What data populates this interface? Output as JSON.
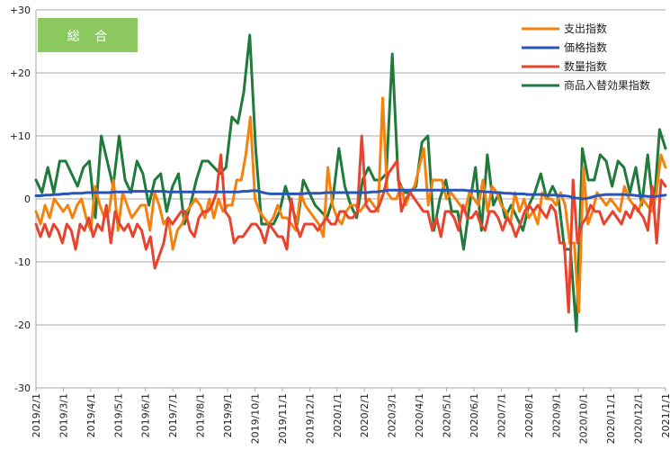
{
  "chart_data": {
    "type": "line",
    "title": "総 合",
    "xlabel": "",
    "ylabel": "",
    "ylim": [
      -30,
      30
    ],
    "y_ticks": [
      "+30",
      "+20",
      "+10",
      "0",
      "-10",
      "-20",
      "-30"
    ],
    "y_tick_values": [
      30,
      20,
      10,
      0,
      -10,
      -20,
      -30
    ],
    "x_tick_labels": [
      "2019/2/1",
      "2019/3/1",
      "2019/4/1",
      "2019/5/1",
      "2019/6/1",
      "2019/7/1",
      "2019/8/1",
      "2019/9/1",
      "2019/10/1",
      "2019/11/1",
      "2019/12/1",
      "2020/1/1",
      "2020/2/1",
      "2020/3/1",
      "2020/4/1",
      "2020/5/1",
      "2020/6/1",
      "2020/7/1",
      "2020/8/1",
      "2020/9/1",
      "2020/10/1",
      "2020/11/1",
      "2020/12/1",
      "2021/1/1"
    ],
    "grid": "horizontal",
    "legend_position": "top-right",
    "colors": {
      "spend": "#f5820f",
      "price": "#2a55b8",
      "quantity": "#e8432e",
      "substitution": "#1f7a3c",
      "badge": "#8cc860"
    },
    "series": [
      {
        "name": "支出指数",
        "key": "spend",
        "values": [
          -2,
          -4,
          -1,
          -3,
          0,
          -1,
          -2,
          -1,
          -3,
          -1,
          0,
          -3,
          -5,
          2,
          -1,
          -3,
          -2,
          3,
          -5,
          1,
          -1,
          -3,
          -2,
          -1,
          -1,
          -5,
          1,
          -1,
          -4,
          -3,
          -8,
          -5,
          -4,
          -2,
          -1,
          0,
          -1,
          -3,
          0,
          -3,
          0,
          -2,
          -1,
          -1,
          3,
          3,
          7,
          13,
          0,
          -2,
          -3,
          -4,
          -3,
          -1,
          -3,
          -3,
          -4,
          -5,
          1,
          -1,
          -2,
          -3,
          -4,
          -6,
          5,
          -1,
          -3,
          -4,
          -2,
          -1,
          -1,
          -2,
          -1,
          0,
          -1,
          -2,
          16,
          1,
          0,
          0,
          2,
          -1,
          1,
          2,
          5,
          8,
          -1,
          3,
          3,
          3,
          0,
          1,
          0,
          -1,
          -2,
          1,
          0,
          -1,
          3,
          -2,
          2,
          1,
          -1,
          -2,
          -4,
          1,
          -2,
          0,
          -3,
          -2,
          -4,
          1,
          0,
          0,
          -1,
          1,
          -1,
          -7,
          -7,
          -18,
          5,
          -4,
          -2,
          1,
          0,
          -1,
          0,
          -1,
          -2,
          2,
          0,
          -1,
          -2,
          0,
          -1,
          -2,
          1,
          7,
          5
        ],
        "weekly": true
      },
      {
        "name": "価格指数",
        "key": "price",
        "values": [
          0.5,
          0.5,
          0.6,
          0.6,
          0.7,
          0.7,
          0.8,
          0.8,
          0.9,
          0.9,
          0.9,
          1.0,
          1.0,
          1.0,
          1.0,
          1.0,
          1.0,
          1.1,
          1.1,
          1.1,
          1.1,
          1.2,
          1.2,
          1.2,
          1.2,
          1.2,
          1.2,
          1.2,
          1.2,
          1.1,
          1.1,
          1.1,
          1.1,
          1.1,
          1.1,
          1.1,
          1.1,
          1.1,
          1.1,
          1.1,
          1.1,
          1.1,
          1.1,
          1.1,
          1.1,
          1.2,
          1.2,
          1.3,
          1.3,
          1.1,
          0.9,
          0.8,
          0.8,
          0.8,
          0.8,
          0.8,
          0.8,
          0.8,
          0.8,
          0.9,
          0.9,
          0.9,
          0.9,
          1.0,
          1.0,
          1.0,
          1.0,
          1.0,
          1.0,
          1.0,
          1.0,
          1.0,
          1.0,
          1.1,
          1.1,
          1.2,
          1.3,
          1.4,
          1.4,
          1.4,
          1.4,
          1.4,
          1.4,
          1.4,
          1.4,
          1.4,
          1.4,
          1.4,
          1.4,
          1.4,
          1.4,
          1.4,
          1.4,
          1.4,
          1.3,
          1.3,
          1.2,
          1.2,
          1.1,
          1.1,
          1.0,
          1.0,
          0.9,
          0.9,
          0.8,
          0.8,
          0.8,
          0.7,
          0.7,
          0.7,
          0.7,
          0.6,
          0.6,
          0.6,
          0.5,
          0.5,
          0.4,
          0.2,
          0.1,
          0.0,
          0.1,
          0.3,
          0.5,
          0.6,
          0.7,
          0.7,
          0.7,
          0.7,
          0.7,
          0.6,
          0.6,
          0.5,
          0.5,
          0.4,
          0.4,
          0.4,
          0.5,
          0.6
        ],
        "weekly": true
      },
      {
        "name": "数量指数",
        "key": "quantity",
        "values": [
          -4,
          -6,
          -4,
          -6,
          -4,
          -5,
          -7,
          -4,
          -5,
          -8,
          -4,
          -5,
          -3,
          -6,
          -4,
          -5,
          -1,
          -7,
          -2,
          -4,
          -5,
          -4,
          -6,
          -4,
          -5,
          -8,
          -6,
          -11,
          -9,
          -7,
          -3,
          -4,
          -3,
          -2,
          -2,
          -5,
          -6,
          -3,
          -2,
          -2,
          -1,
          1,
          7,
          -2,
          -3,
          -7,
          -6,
          -6,
          -5,
          -4,
          -4,
          -5,
          -7,
          -4,
          -5,
          -6,
          -6,
          -8,
          0,
          -4,
          -6,
          -4,
          -4,
          -4,
          -5,
          -4,
          -3,
          -4,
          -4,
          -2,
          -2,
          -3,
          -3,
          -2,
          10,
          -1,
          -2,
          -2,
          -1,
          1,
          4,
          5,
          6,
          -2,
          0,
          1,
          0,
          -1,
          -2,
          -2,
          -5,
          -3,
          -6,
          -2,
          -2,
          -3,
          -5,
          -1,
          -3,
          -3,
          -2,
          -4,
          -5,
          -2,
          -2,
          -3,
          -5,
          -3,
          -4,
          -6,
          -4,
          -2,
          -1,
          -2,
          -1,
          -2,
          -3,
          -1,
          -2,
          -7,
          -7,
          -18,
          3,
          -7,
          -4,
          -3,
          -1,
          -2,
          -2,
          -4,
          -3,
          -2,
          -3,
          -4,
          -2,
          -3,
          -1,
          -2,
          -3,
          -5,
          2,
          -7,
          3,
          2
        ],
        "weekly": true
      },
      {
        "name": "商品入替効果指数",
        "key": "substitution",
        "values": [
          3,
          1,
          5,
          1,
          6,
          6,
          4,
          2,
          5,
          6,
          -3,
          10,
          6,
          2,
          10,
          3,
          1,
          6,
          4,
          -1,
          3,
          4,
          -2,
          2,
          4,
          -4,
          -1,
          3,
          6,
          6,
          5,
          4,
          5,
          13,
          12,
          17,
          26,
          8,
          -4,
          -4,
          -4,
          -2,
          2,
          -1,
          -4,
          3,
          1,
          -1,
          -2,
          -3,
          0,
          8,
          2,
          -1,
          -3,
          3,
          5,
          3,
          3,
          4,
          23,
          3,
          1,
          1,
          2,
          9,
          10,
          -5,
          0,
          3,
          -2,
          -2,
          -8,
          -1,
          5,
          -5,
          7,
          -1,
          1,
          -3,
          -1,
          -3,
          -5,
          -1,
          1,
          4,
          0,
          2,
          0,
          -8,
          -8,
          -21,
          8,
          3,
          3,
          7,
          6,
          2,
          6,
          5,
          1,
          5,
          -1,
          7,
          -2,
          11,
          8
        ],
        "weekly": false
      }
    ]
  }
}
